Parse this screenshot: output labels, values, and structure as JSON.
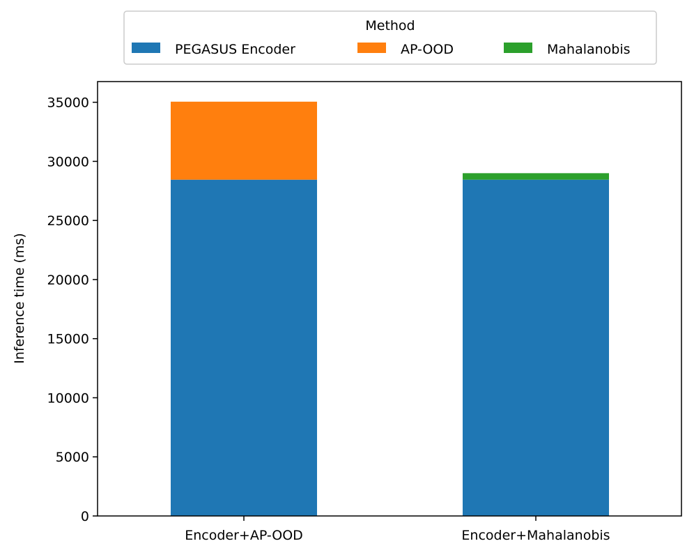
{
  "chart_data": {
    "type": "bar",
    "stacked": true,
    "title": "",
    "xlabel": "",
    "ylabel": "Inference time (ms)",
    "categories": [
      "Encoder+AP-OOD",
      "Encoder+Mahalanobis"
    ],
    "series": [
      {
        "name": "PEGASUS Encoder",
        "color": "#1f77b4",
        "values": [
          28450,
          28450
        ]
      },
      {
        "name": "AP-OOD",
        "color": "#ff7f0e",
        "values": [
          6600,
          0
        ]
      },
      {
        "name": "Mahalanobis",
        "color": "#2ca02c",
        "values": [
          0,
          550
        ]
      }
    ],
    "ylim": [
      0,
      36750
    ],
    "yticks": [
      0,
      5000,
      10000,
      15000,
      20000,
      25000,
      30000,
      35000
    ],
    "ytick_labels": [
      "0",
      "5000",
      "10000",
      "15000",
      "20000",
      "25000",
      "30000",
      "35000"
    ],
    "grid": false,
    "legend": {
      "title": "Method",
      "placement": "top-center-outside",
      "entries": [
        "PEGASUS Encoder",
        "AP-OOD",
        "Mahalanobis"
      ]
    }
  }
}
